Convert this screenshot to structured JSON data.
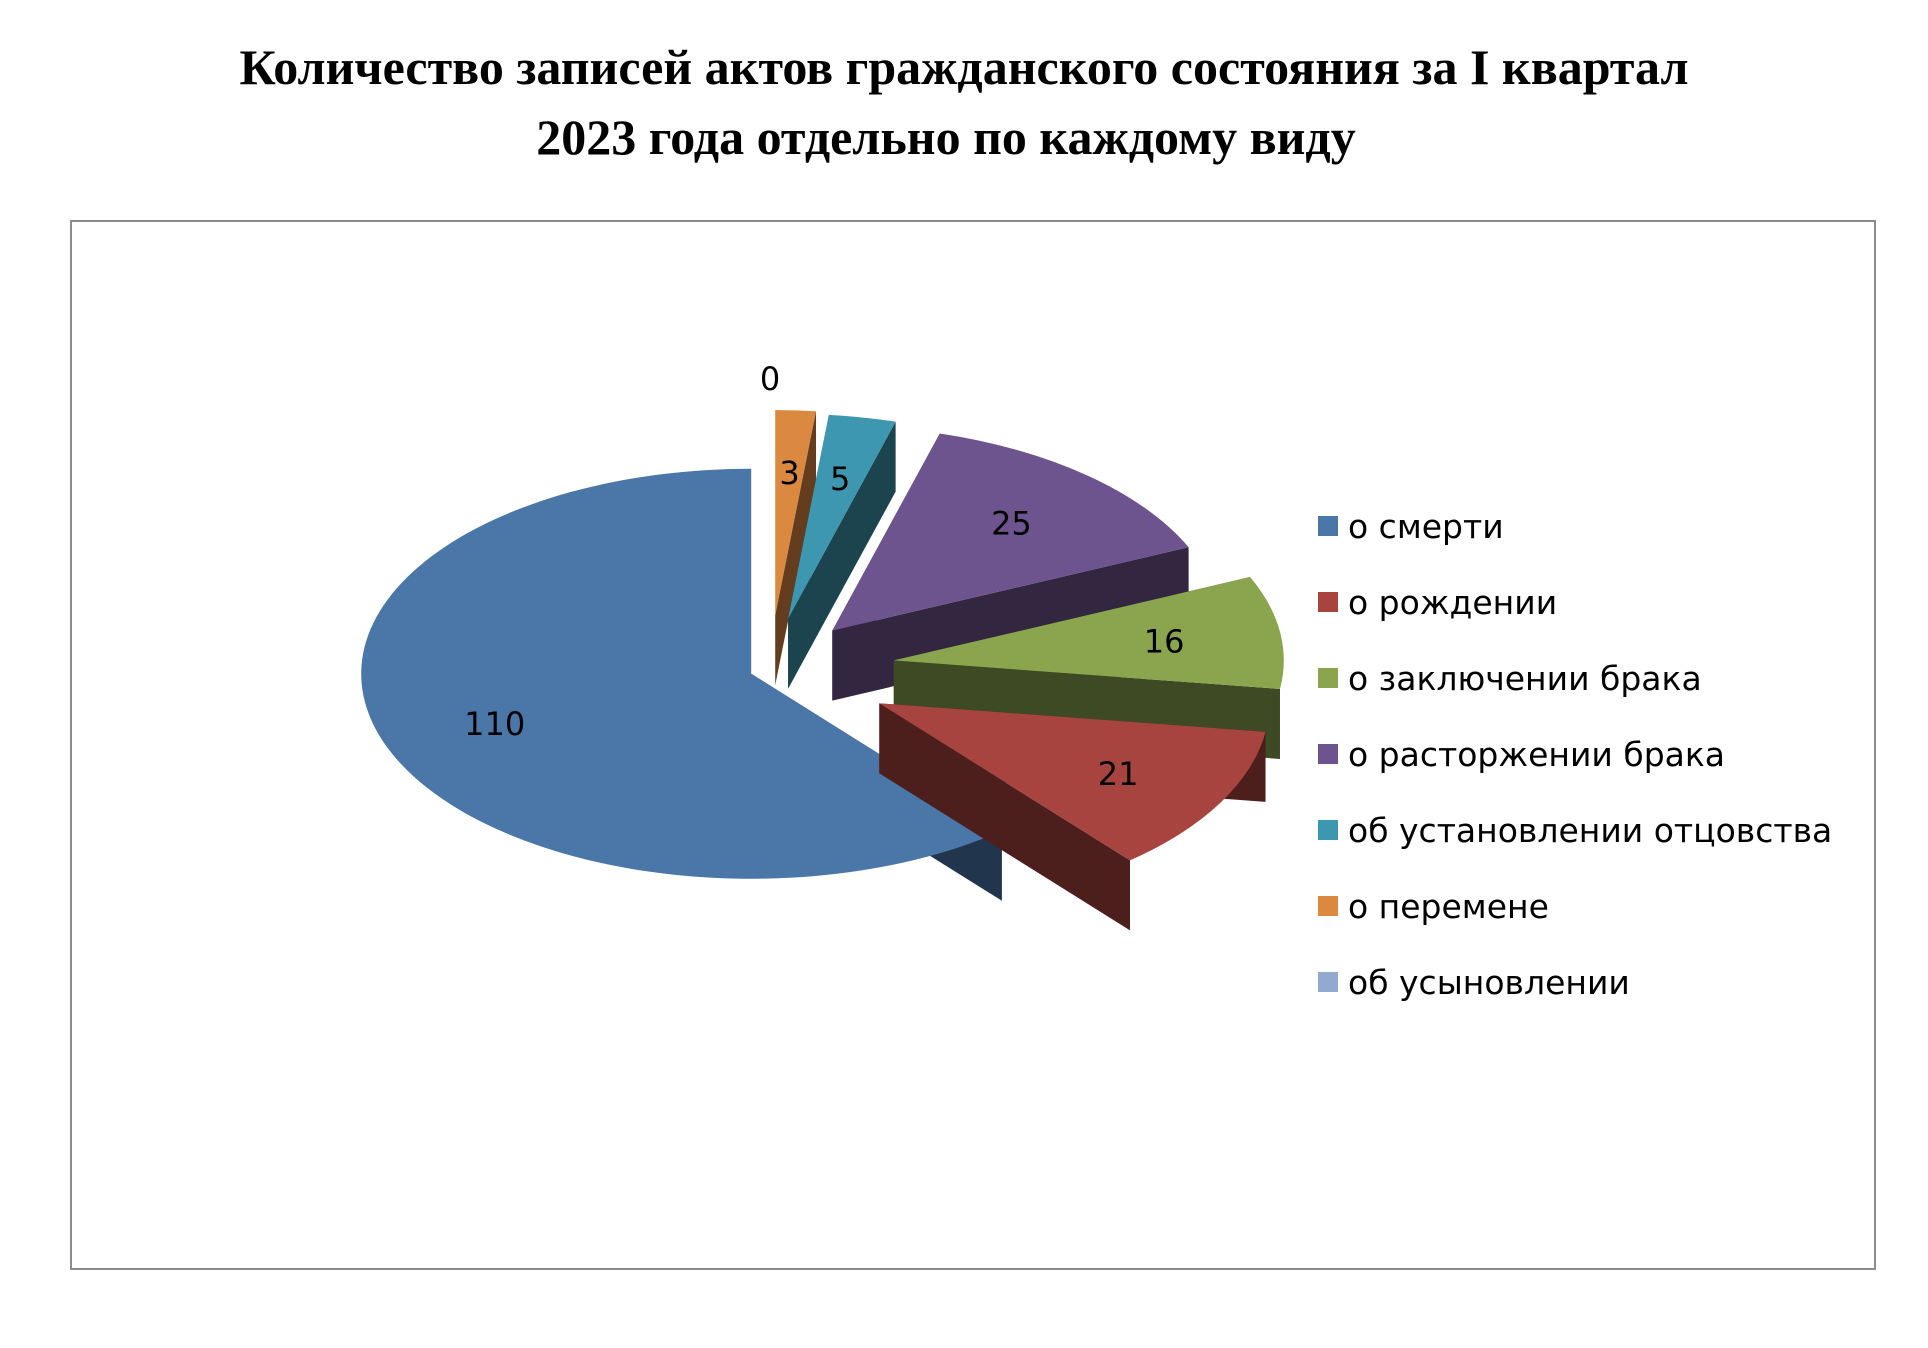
{
  "chart_data": {
    "type": "pie",
    "title": "Количество записей актов гражданского состояния за I квартал 2023 года отдельно по каждому виду",
    "title_lines": [
      "Количество записей актов гражданского состояния за I квартал",
      "2023 года отдельно по каждому виду"
    ],
    "categories": [
      "о смерти",
      "о рождении",
      "о заключении брака",
      "о расторжении брака",
      "об установлении отцовства",
      "о перемене",
      "об усыновлении"
    ],
    "values": [
      110,
      21,
      16,
      25,
      5,
      3,
      0
    ],
    "colors": [
      "#4A76A8",
      "#A84440",
      "#8AA54E",
      "#6E548E",
      "#3E97B0",
      "#DB8840",
      "#93A9D0"
    ],
    "legend_position": "right",
    "style": "3d-exploded"
  }
}
